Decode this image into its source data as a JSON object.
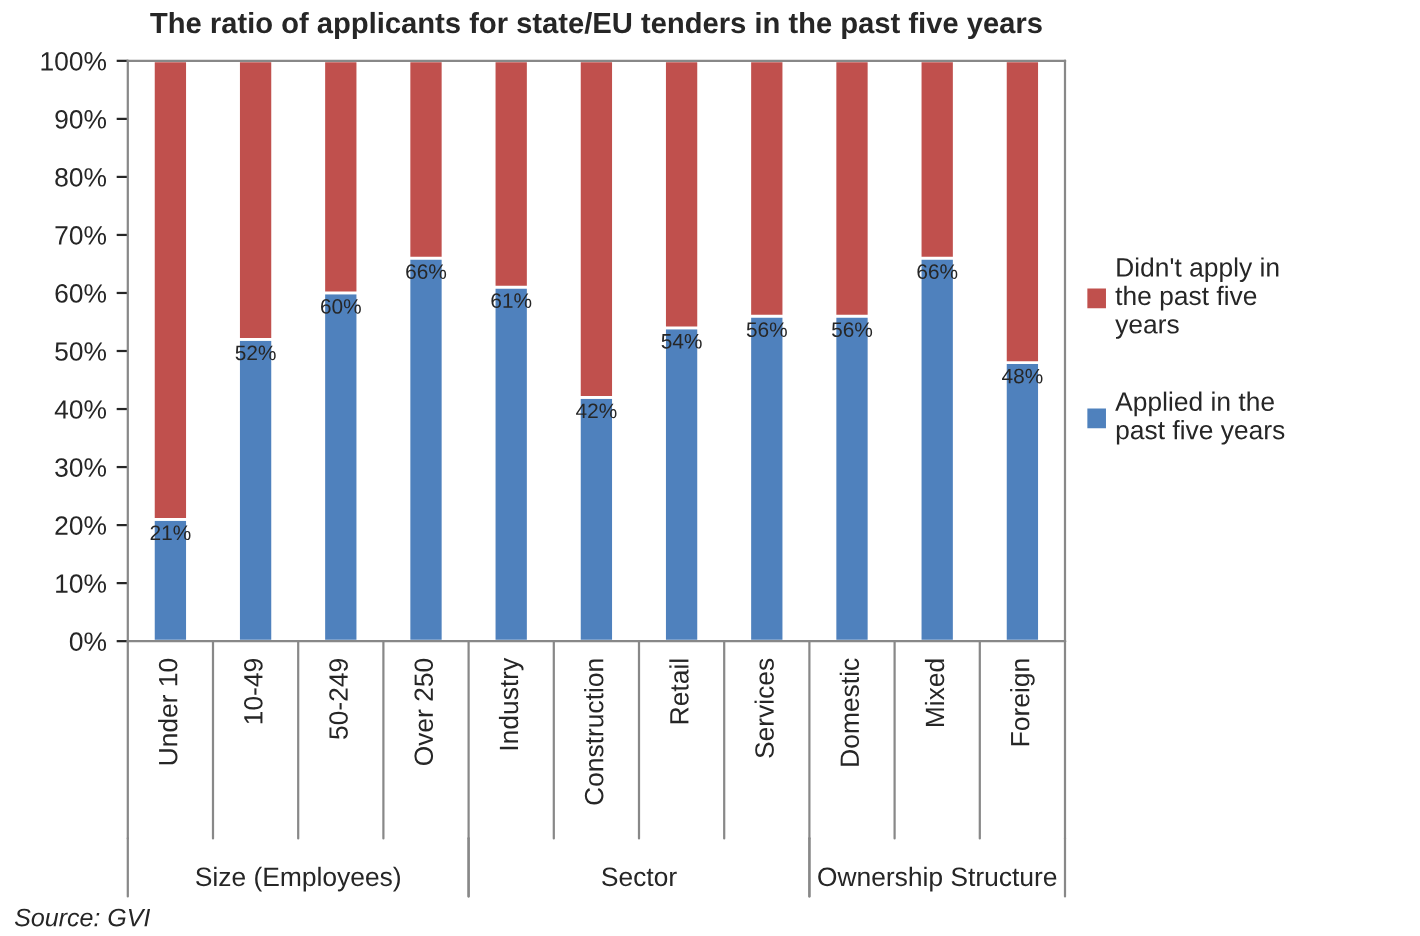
{
  "chart_data": {
    "type": "bar",
    "title": "The ratio of applicants for state/EU tenders in the past five years",
    "categories": [
      "Under 10",
      "10-49",
      "50-249",
      "Over 250",
      "Industry",
      "Construction",
      "Retail",
      "Services",
      "Domestic",
      "Mixed",
      "Foreign"
    ],
    "stacked": true,
    "series": [
      {
        "name": "Applied in the past five years",
        "color": "#4f81bd",
        "values": [
          21,
          52,
          60,
          66,
          61,
          42,
          54,
          56,
          56,
          66,
          48
        ],
        "value_labels": [
          "21%",
          "52%",
          "60%",
          "66%",
          "61%",
          "42%",
          "54%",
          "56%",
          "56%",
          "66%",
          "48%"
        ]
      },
      {
        "name": "Didn't apply in the past five years",
        "color": "#c0504d",
        "values": [
          79,
          48,
          40,
          34,
          39,
          58,
          46,
          44,
          44,
          34,
          52
        ]
      }
    ],
    "ylim": [
      0,
      100
    ],
    "yticks": [
      {
        "value": 0,
        "label": "0%"
      },
      {
        "value": 10,
        "label": "10%"
      },
      {
        "value": 20,
        "label": "20%"
      },
      {
        "value": 30,
        "label": "30%"
      },
      {
        "value": 40,
        "label": "40%"
      },
      {
        "value": 50,
        "label": "50%"
      },
      {
        "value": 60,
        "label": "60%"
      },
      {
        "value": 70,
        "label": "70%"
      },
      {
        "value": 80,
        "label": "80%"
      },
      {
        "value": 90,
        "label": "90%"
      },
      {
        "value": 100,
        "label": "100%"
      }
    ],
    "grid": false,
    "legend": "right",
    "annotations": [
      "Size (Employees)",
      "Sector",
      "Ownership Structure",
      "Source: GVI"
    ]
  }
}
